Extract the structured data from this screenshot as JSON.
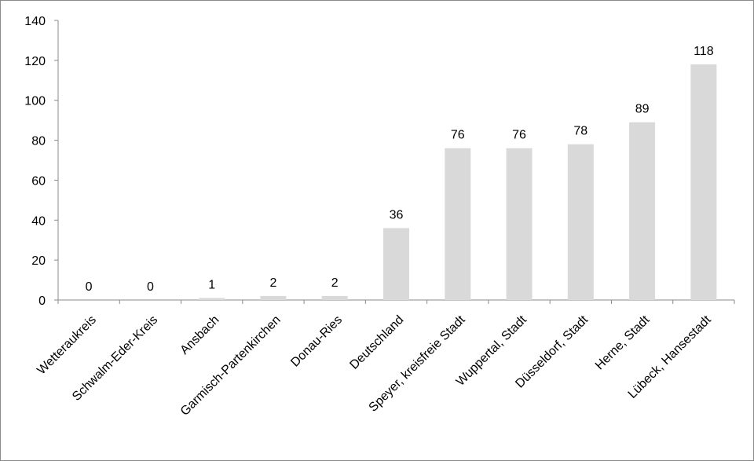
{
  "chart_data": {
    "type": "bar",
    "title": "",
    "xlabel": "",
    "ylabel": "",
    "categories": [
      "Wetteraukreis",
      "Schwalm-Eder-Kreis",
      "Ansbach",
      "Garmisch-Partenkirchen",
      "Donau-Ries",
      "Deutschland",
      "Speyer, kreisfreie Stadt",
      "Wuppertal, Stadt",
      "Düsseldorf, Stadt",
      "Herne, Stadt",
      "Lübeck, Hansestadt"
    ],
    "values": [
      0,
      0,
      1,
      2,
      2,
      36,
      76,
      76,
      78,
      89,
      118
    ],
    "ylim": [
      0,
      140
    ],
    "yticks": [
      0,
      20,
      40,
      60,
      80,
      100,
      120,
      140
    ],
    "grid": false,
    "legend": "none",
    "bar_color": "#d9d9d9",
    "axis_color": "#8a8a8a"
  }
}
